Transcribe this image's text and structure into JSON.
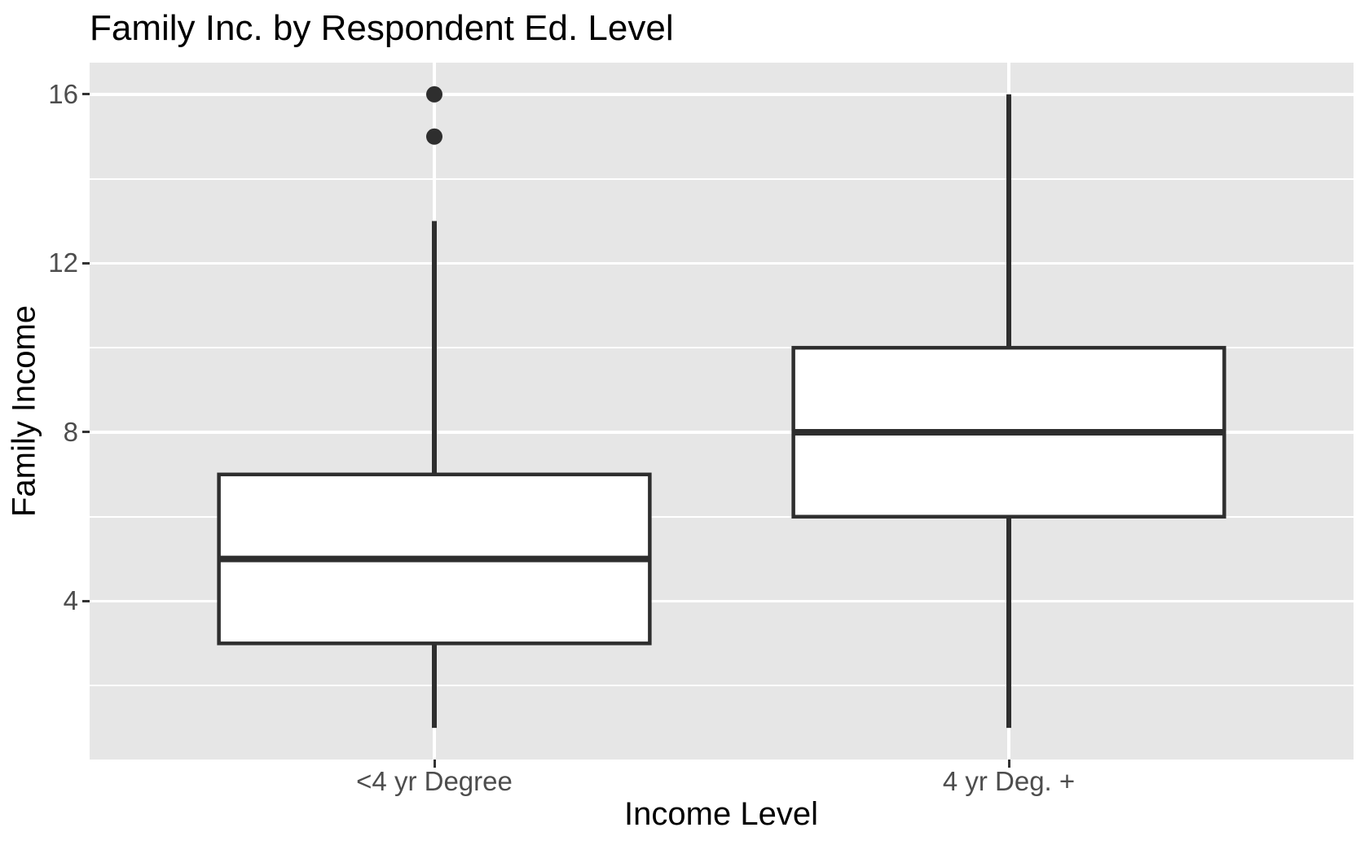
{
  "title": "Family Inc. by Respondent Ed. Level",
  "axes": {
    "x_title": "Income Level",
    "y_title": "Family Income"
  },
  "chart_data": {
    "type": "boxplot",
    "title": "Family Inc. by Respondent Ed. Level",
    "xlabel": "Income Level",
    "ylabel": "Family Income",
    "categories": [
      "<4 yr Degree",
      "4 yr Deg. +"
    ],
    "y_ticks": [
      4,
      8,
      12,
      16
    ],
    "y_minor_ticks": [
      2,
      6,
      10,
      14
    ],
    "ylim": [
      0.25,
      16.75
    ],
    "grid": "white major and minor lines on gray panel",
    "legend_position": "none",
    "series": [
      {
        "name": "<4 yr Degree",
        "whisker_low": 1,
        "q1": 3,
        "median": 5,
        "q3": 7,
        "whisker_high": 13,
        "outliers": [
          15,
          16
        ]
      },
      {
        "name": "4 yr Deg. +",
        "whisker_low": 1,
        "q1": 6,
        "median": 8,
        "q3": 10,
        "whisker_high": 16,
        "outliers": []
      }
    ],
    "colors": {
      "panel_background": "#E6E6E6",
      "gridline": "#FFFFFF",
      "box_stroke": "#2E2E2E",
      "box_fill": "#FFFFFF",
      "outlier_fill": "#2E2E2E",
      "tick_label": "#4D4D4D",
      "tick_mark": "#333333",
      "title_text": "#000000"
    }
  }
}
